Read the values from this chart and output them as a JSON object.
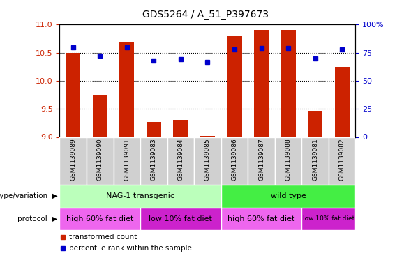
{
  "title": "GDS5264 / A_51_P397673",
  "samples": [
    "GSM1139089",
    "GSM1139090",
    "GSM1139091",
    "GSM1139083",
    "GSM1139084",
    "GSM1139085",
    "GSM1139086",
    "GSM1139087",
    "GSM1139088",
    "GSM1139081",
    "GSM1139082"
  ],
  "transformed_count": [
    10.5,
    9.75,
    10.7,
    9.27,
    9.3,
    9.02,
    10.8,
    10.9,
    10.9,
    9.47,
    10.25
  ],
  "percentile_rank": [
    80,
    72,
    80,
    68,
    69,
    67,
    78,
    79,
    79,
    70,
    78
  ],
  "ylim_left": [
    9.0,
    11.0
  ],
  "ylim_right": [
    0,
    100
  ],
  "yticks_left": [
    9.0,
    9.5,
    10.0,
    10.5,
    11.0
  ],
  "yticks_right": [
    0,
    25,
    50,
    75,
    100
  ],
  "bar_color": "#cc2200",
  "dot_color": "#0000cc",
  "tick_box_color": "#d0d0d0",
  "genotype_groups": [
    {
      "label": "NAG-1 transgenic",
      "start": 0,
      "end": 5,
      "color": "#bbffbb"
    },
    {
      "label": "wild type",
      "start": 6,
      "end": 10,
      "color": "#44ee44"
    }
  ],
  "protocol_groups": [
    {
      "label": "high 60% fat diet",
      "start": 0,
      "end": 2,
      "color": "#ee66ee"
    },
    {
      "label": "low 10% fat diet",
      "start": 3,
      "end": 5,
      "color": "#cc22cc"
    },
    {
      "label": "high 60% fat diet",
      "start": 6,
      "end": 8,
      "color": "#ee66ee"
    },
    {
      "label": "low 10% fat diet",
      "start": 9,
      "end": 10,
      "color": "#cc22cc"
    }
  ],
  "tick_label_color_left": "#cc2200",
  "tick_label_color_right": "#0000cc",
  "grid_dotted_at": [
    9.5,
    10.0,
    10.5
  ]
}
